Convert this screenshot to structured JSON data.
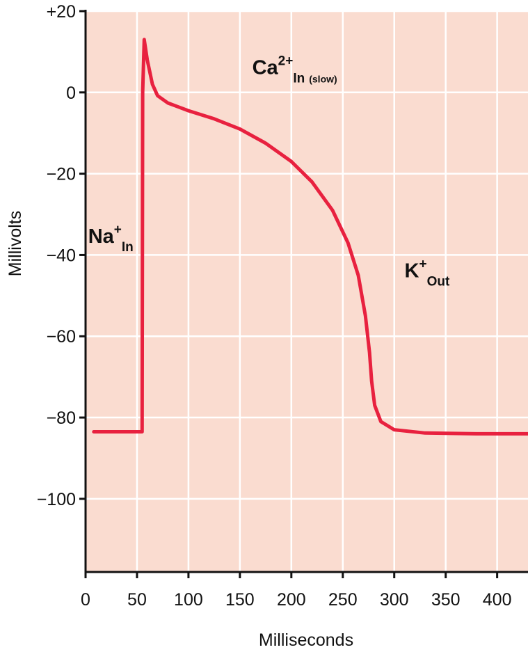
{
  "chart_data": {
    "type": "line",
    "title": "",
    "xlabel": "Milliseconds",
    "ylabel": "Millivolts",
    "xlim": [
      0,
      430
    ],
    "ylim": [
      -118,
      20
    ],
    "x_ticks": [
      0,
      50,
      100,
      150,
      200,
      250,
      300,
      350,
      400
    ],
    "x_tick_labels": [
      "0",
      "50",
      "100",
      "150",
      "200",
      "250",
      "300",
      "350",
      "400"
    ],
    "y_ticks": [
      20,
      0,
      -20,
      -40,
      -60,
      -80,
      -100
    ],
    "y_tick_labels": [
      "+20",
      "0",
      "−20",
      "−40",
      "−60",
      "−80",
      "−100"
    ],
    "grid": true,
    "colors": {
      "plot_bg": "#fadcd0",
      "line": "#e8213f",
      "grid": "#ffffff",
      "axis": "#111111"
    },
    "series": [
      {
        "values": [
          {
            "x": 8,
            "y": -83.5
          },
          {
            "x": 55,
            "y": -83.5
          },
          {
            "x": 55.5,
            "y": 0
          },
          {
            "x": 57,
            "y": 13
          },
          {
            "x": 60,
            "y": 8
          },
          {
            "x": 65,
            "y": 2
          },
          {
            "x": 70,
            "y": -0.8
          },
          {
            "x": 80,
            "y": -2.6
          },
          {
            "x": 100,
            "y": -4.5
          },
          {
            "x": 125,
            "y": -6.5
          },
          {
            "x": 150,
            "y": -9
          },
          {
            "x": 175,
            "y": -12.5
          },
          {
            "x": 200,
            "y": -17
          },
          {
            "x": 220,
            "y": -22
          },
          {
            "x": 240,
            "y": -29
          },
          {
            "x": 255,
            "y": -37
          },
          {
            "x": 265,
            "y": -45
          },
          {
            "x": 272,
            "y": -55
          },
          {
            "x": 276,
            "y": -64
          },
          {
            "x": 278,
            "y": -71
          },
          {
            "x": 281,
            "y": -77
          },
          {
            "x": 287,
            "y": -81
          },
          {
            "x": 300,
            "y": -83
          },
          {
            "x": 330,
            "y": -83.8
          },
          {
            "x": 380,
            "y": -84
          },
          {
            "x": 430,
            "y": -84
          }
        ]
      }
    ],
    "annotations": [
      {
        "main": "Na",
        "sup": "+",
        "sub": "In",
        "small": "",
        "x": 2.5,
        "y": -37
      },
      {
        "main": "Ca",
        "sup": "2+",
        "sub": "In",
        "small": "(slow)",
        "x": 162,
        "y": 4.5
      },
      {
        "main": "K",
        "sup": "+",
        "sub": "Out",
        "small": "",
        "x": 310,
        "y": -45.5
      }
    ]
  }
}
